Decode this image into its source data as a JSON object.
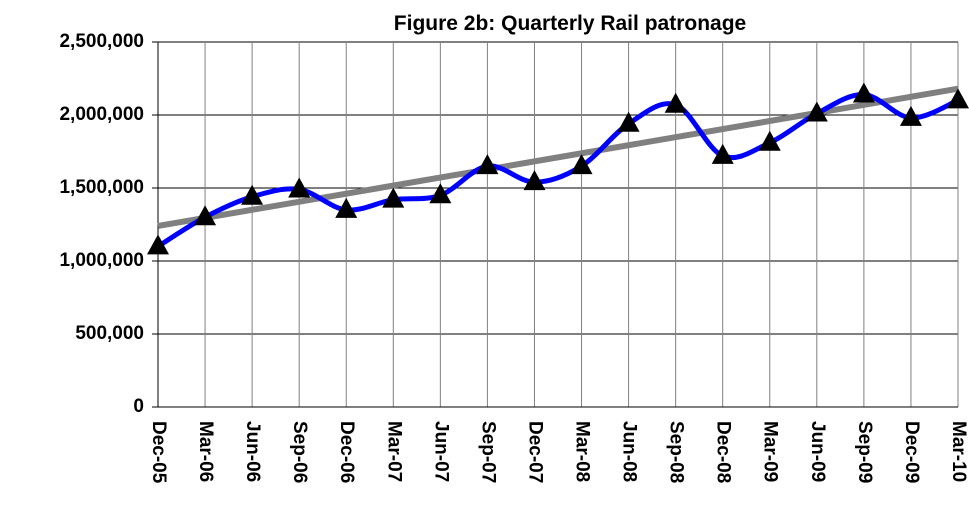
{
  "chart_data": {
    "type": "line",
    "title": "Figure 2b: Quarterly Rail patronage",
    "categories": [
      "Dec-05",
      "Mar-06",
      "Jun-06",
      "Sep-06",
      "Dec-06",
      "Mar-07",
      "Jun-07",
      "Sep-07",
      "Dec-07",
      "Mar-08",
      "Jun-08",
      "Sep-08",
      "Dec-08",
      "Mar-09",
      "Jun-09",
      "Sep-09",
      "Dec-09",
      "Mar-10"
    ],
    "series": [
      {
        "color": "#0000ff",
        "marker_color": "#000000",
        "values": [
          1100000,
          1300000,
          1440000,
          1490000,
          1350000,
          1420000,
          1450000,
          1650000,
          1540000,
          1650000,
          1940000,
          2070000,
          1720000,
          1810000,
          2010000,
          2140000,
          1980000,
          2100000
        ]
      }
    ],
    "trendline": {
      "color": "#808080",
      "start": 1240000,
      "end": 2180000
    },
    "ylim": [
      0,
      2500000
    ],
    "yticks": [
      0,
      {
        "value": 500000,
        "label": "500,000"
      },
      {
        "value": 1000000,
        "label": "1,000,000"
      },
      {
        "value": 1500000,
        "label": "1,500,000"
      },
      {
        "value": 2000000,
        "label": "2,000,000"
      },
      {
        "value": 2500000,
        "label": "2,500,000"
      }
    ],
    "grid": true
  }
}
